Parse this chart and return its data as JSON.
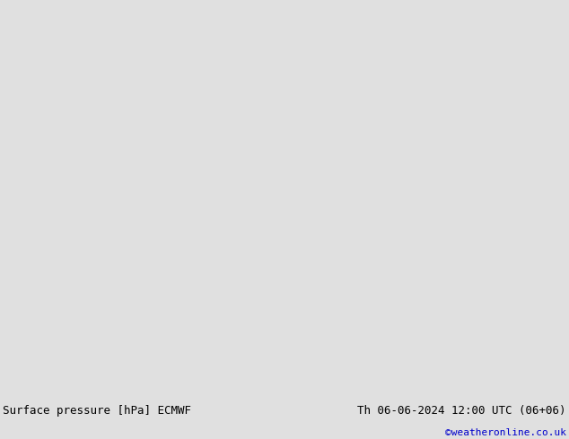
{
  "title_left": "Surface pressure [hPa] ECMWF",
  "title_right": "Th 06-06-2024 12:00 UTC (06+06)",
  "credit": "©weatheronline.co.uk",
  "sea_color": "#d0d0d0",
  "land_color": "#c8f0b8",
  "border_color": "#909090",
  "isobar_blue": "#0000dd",
  "isobar_black": "#000000",
  "isobar_red": "#dd0000",
  "label_blue": "#0000dd",
  "label_black": "#000000",
  "label_red": "#dd0000",
  "credit_color": "#0000cc",
  "title_fontsize": 9,
  "credit_fontsize": 8,
  "label_fontsize": 7.5,
  "lw_blue": 1.3,
  "lw_black": 2.0,
  "lw_red": 1.3,
  "extent": [
    -14,
    25,
    43,
    63
  ],
  "figsize": [
    6.34,
    4.9
  ],
  "dpi": 100
}
